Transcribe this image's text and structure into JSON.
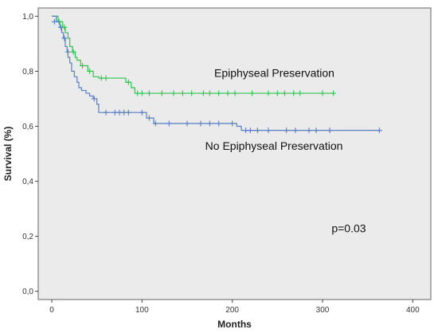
{
  "chart_data": {
    "type": "line",
    "title": "",
    "xlabel": "Months",
    "ylabel": "Survival (%)",
    "xlim": [
      -15,
      420
    ],
    "ylim": [
      -0.03,
      1.03
    ],
    "xticks": [
      0,
      100,
      200,
      300,
      400
    ],
    "yticks": [
      0.0,
      0.2,
      0.4,
      0.6,
      0.8,
      1.0
    ],
    "ytick_labels": [
      "0,0",
      "0,2",
      "0,4",
      "0,6",
      "0,8",
      "1,0"
    ],
    "grid": false,
    "plot_background": "#ebebeb",
    "series": [
      {
        "name": "Epiphyseal Preservation",
        "color": "#2ec44f",
        "steps": [
          [
            0,
            1.0
          ],
          [
            7,
            0.98
          ],
          [
            12,
            0.96
          ],
          [
            15,
            0.94
          ],
          [
            18,
            0.92
          ],
          [
            20,
            0.89
          ],
          [
            23,
            0.87
          ],
          [
            26,
            0.85
          ],
          [
            28,
            0.84
          ],
          [
            32,
            0.82
          ],
          [
            40,
            0.8
          ],
          [
            46,
            0.78
          ],
          [
            52,
            0.775
          ],
          [
            82,
            0.76
          ],
          [
            88,
            0.74
          ],
          [
            92,
            0.72
          ],
          [
            312,
            0.72
          ]
        ],
        "censored": [
          [
            8,
            0.98
          ],
          [
            14,
            0.96
          ],
          [
            24,
            0.87
          ],
          [
            34,
            0.82
          ],
          [
            42,
            0.8
          ],
          [
            55,
            0.775
          ],
          [
            60,
            0.775
          ],
          [
            85,
            0.76
          ],
          [
            95,
            0.72
          ],
          [
            100,
            0.72
          ],
          [
            108,
            0.72
          ],
          [
            122,
            0.72
          ],
          [
            135,
            0.72
          ],
          [
            145,
            0.72
          ],
          [
            155,
            0.72
          ],
          [
            168,
            0.72
          ],
          [
            175,
            0.72
          ],
          [
            185,
            0.72
          ],
          [
            195,
            0.72
          ],
          [
            203,
            0.72
          ],
          [
            222,
            0.72
          ],
          [
            240,
            0.72
          ],
          [
            250,
            0.72
          ],
          [
            258,
            0.72
          ],
          [
            268,
            0.72
          ],
          [
            275,
            0.72
          ],
          [
            300,
            0.72
          ],
          [
            312,
            0.72
          ]
        ]
      },
      {
        "name": "No Epiphyseal Preservation",
        "color": "#5a7ec2",
        "steps": [
          [
            0,
            1.0
          ],
          [
            5,
            0.98
          ],
          [
            9,
            0.96
          ],
          [
            11,
            0.94
          ],
          [
            13,
            0.92
          ],
          [
            15,
            0.89
          ],
          [
            17,
            0.87
          ],
          [
            18,
            0.85
          ],
          [
            20,
            0.83
          ],
          [
            22,
            0.8
          ],
          [
            25,
            0.78
          ],
          [
            28,
            0.76
          ],
          [
            30,
            0.74
          ],
          [
            33,
            0.73
          ],
          [
            38,
            0.72
          ],
          [
            42,
            0.71
          ],
          [
            46,
            0.7
          ],
          [
            50,
            0.68
          ],
          [
            52,
            0.65
          ],
          [
            105,
            0.63
          ],
          [
            113,
            0.61
          ],
          [
            205,
            0.6
          ],
          [
            210,
            0.585
          ],
          [
            365,
            0.585
          ]
        ],
        "censored": [
          [
            3,
            0.98
          ],
          [
            10,
            0.96
          ],
          [
            14,
            0.92
          ],
          [
            18,
            0.87
          ],
          [
            47,
            0.7
          ],
          [
            60,
            0.65
          ],
          [
            70,
            0.65
          ],
          [
            75,
            0.65
          ],
          [
            80,
            0.65
          ],
          [
            85,
            0.65
          ],
          [
            100,
            0.65
          ],
          [
            108,
            0.63
          ],
          [
            115,
            0.61
          ],
          [
            130,
            0.61
          ],
          [
            150,
            0.61
          ],
          [
            165,
            0.61
          ],
          [
            175,
            0.61
          ],
          [
            185,
            0.61
          ],
          [
            200,
            0.61
          ],
          [
            215,
            0.585
          ],
          [
            220,
            0.585
          ],
          [
            228,
            0.585
          ],
          [
            240,
            0.585
          ],
          [
            260,
            0.585
          ],
          [
            270,
            0.585
          ],
          [
            285,
            0.585
          ],
          [
            293,
            0.585
          ],
          [
            308,
            0.585
          ],
          [
            363,
            0.585
          ]
        ]
      }
    ],
    "annotations": [
      {
        "text": "Epiphyseal Preservation",
        "x": 180,
        "y": 0.78
      },
      {
        "text": "No Epiphyseal Preservation",
        "x": 170,
        "y": 0.515
      },
      {
        "text": "p=0.03",
        "x": 310,
        "y": 0.215
      }
    ]
  }
}
